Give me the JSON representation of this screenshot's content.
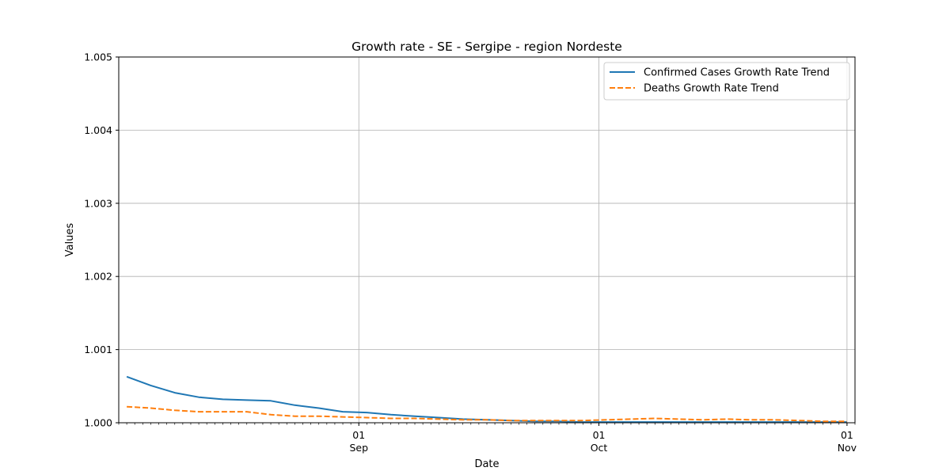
{
  "chart_data": {
    "type": "line",
    "title": "Growth rate - SE - Sergipe - region Nordeste",
    "xlabel": "Date",
    "ylabel": "Values",
    "ylim": [
      1.0,
      1.005
    ],
    "xlim": [
      "2020-08-02",
      "2020-11-02"
    ],
    "grid": true,
    "legend_position": "top-right",
    "y_ticks": [
      "1.000",
      "1.001",
      "1.002",
      "1.003",
      "1.004",
      "1.005"
    ],
    "x_ticks": [
      {
        "date": "2020-09-01",
        "day": "01",
        "month": "Sep"
      },
      {
        "date": "2020-10-01",
        "day": "01",
        "month": "Oct"
      },
      {
        "date": "2020-11-01",
        "day": "01",
        "month": "Nov"
      }
    ],
    "x": [
      "2020-08-03",
      "2020-08-06",
      "2020-08-09",
      "2020-08-12",
      "2020-08-15",
      "2020-08-18",
      "2020-08-21",
      "2020-08-24",
      "2020-08-27",
      "2020-08-30",
      "2020-09-02",
      "2020-09-05",
      "2020-09-08",
      "2020-09-11",
      "2020-09-14",
      "2020-09-17",
      "2020-09-20",
      "2020-09-23",
      "2020-09-26",
      "2020-09-29",
      "2020-10-02",
      "2020-10-05",
      "2020-10-08",
      "2020-10-11",
      "2020-10-14",
      "2020-10-17",
      "2020-10-20",
      "2020-10-23",
      "2020-10-26",
      "2020-10-29",
      "2020-11-01"
    ],
    "series": [
      {
        "name": "Confirmed Cases Growth Rate Trend",
        "color": "#1f77b4",
        "dash": "solid",
        "values": [
          1.00063,
          1.00051,
          1.00041,
          1.00035,
          1.00032,
          1.00031,
          1.0003,
          1.00024,
          1.0002,
          1.00015,
          1.00014,
          1.00011,
          1.00009,
          1.00007,
          1.00005,
          1.00004,
          1.00003,
          1.00002,
          1.00002,
          1.00001,
          1.00001,
          1.00001,
          1.00001,
          1.00001,
          1.00001,
          1.00001,
          1.00001,
          1.00001,
          1.00001,
          1.00001,
          1.00001
        ]
      },
      {
        "name": "Deaths Growth Rate Trend",
        "color": "#ff7f0e",
        "dash": "dashed",
        "values": [
          1.00022,
          1.0002,
          1.00017,
          1.00015,
          1.00015,
          1.00015,
          1.00011,
          1.00009,
          1.00009,
          1.00008,
          1.00007,
          1.00006,
          1.00006,
          1.00005,
          1.00004,
          1.00004,
          1.00003,
          1.00003,
          1.00003,
          1.00003,
          1.00004,
          1.00005,
          1.00006,
          1.00005,
          1.00004,
          1.00005,
          1.00004,
          1.00004,
          1.00003,
          1.00002,
          1.00002
        ]
      }
    ]
  }
}
